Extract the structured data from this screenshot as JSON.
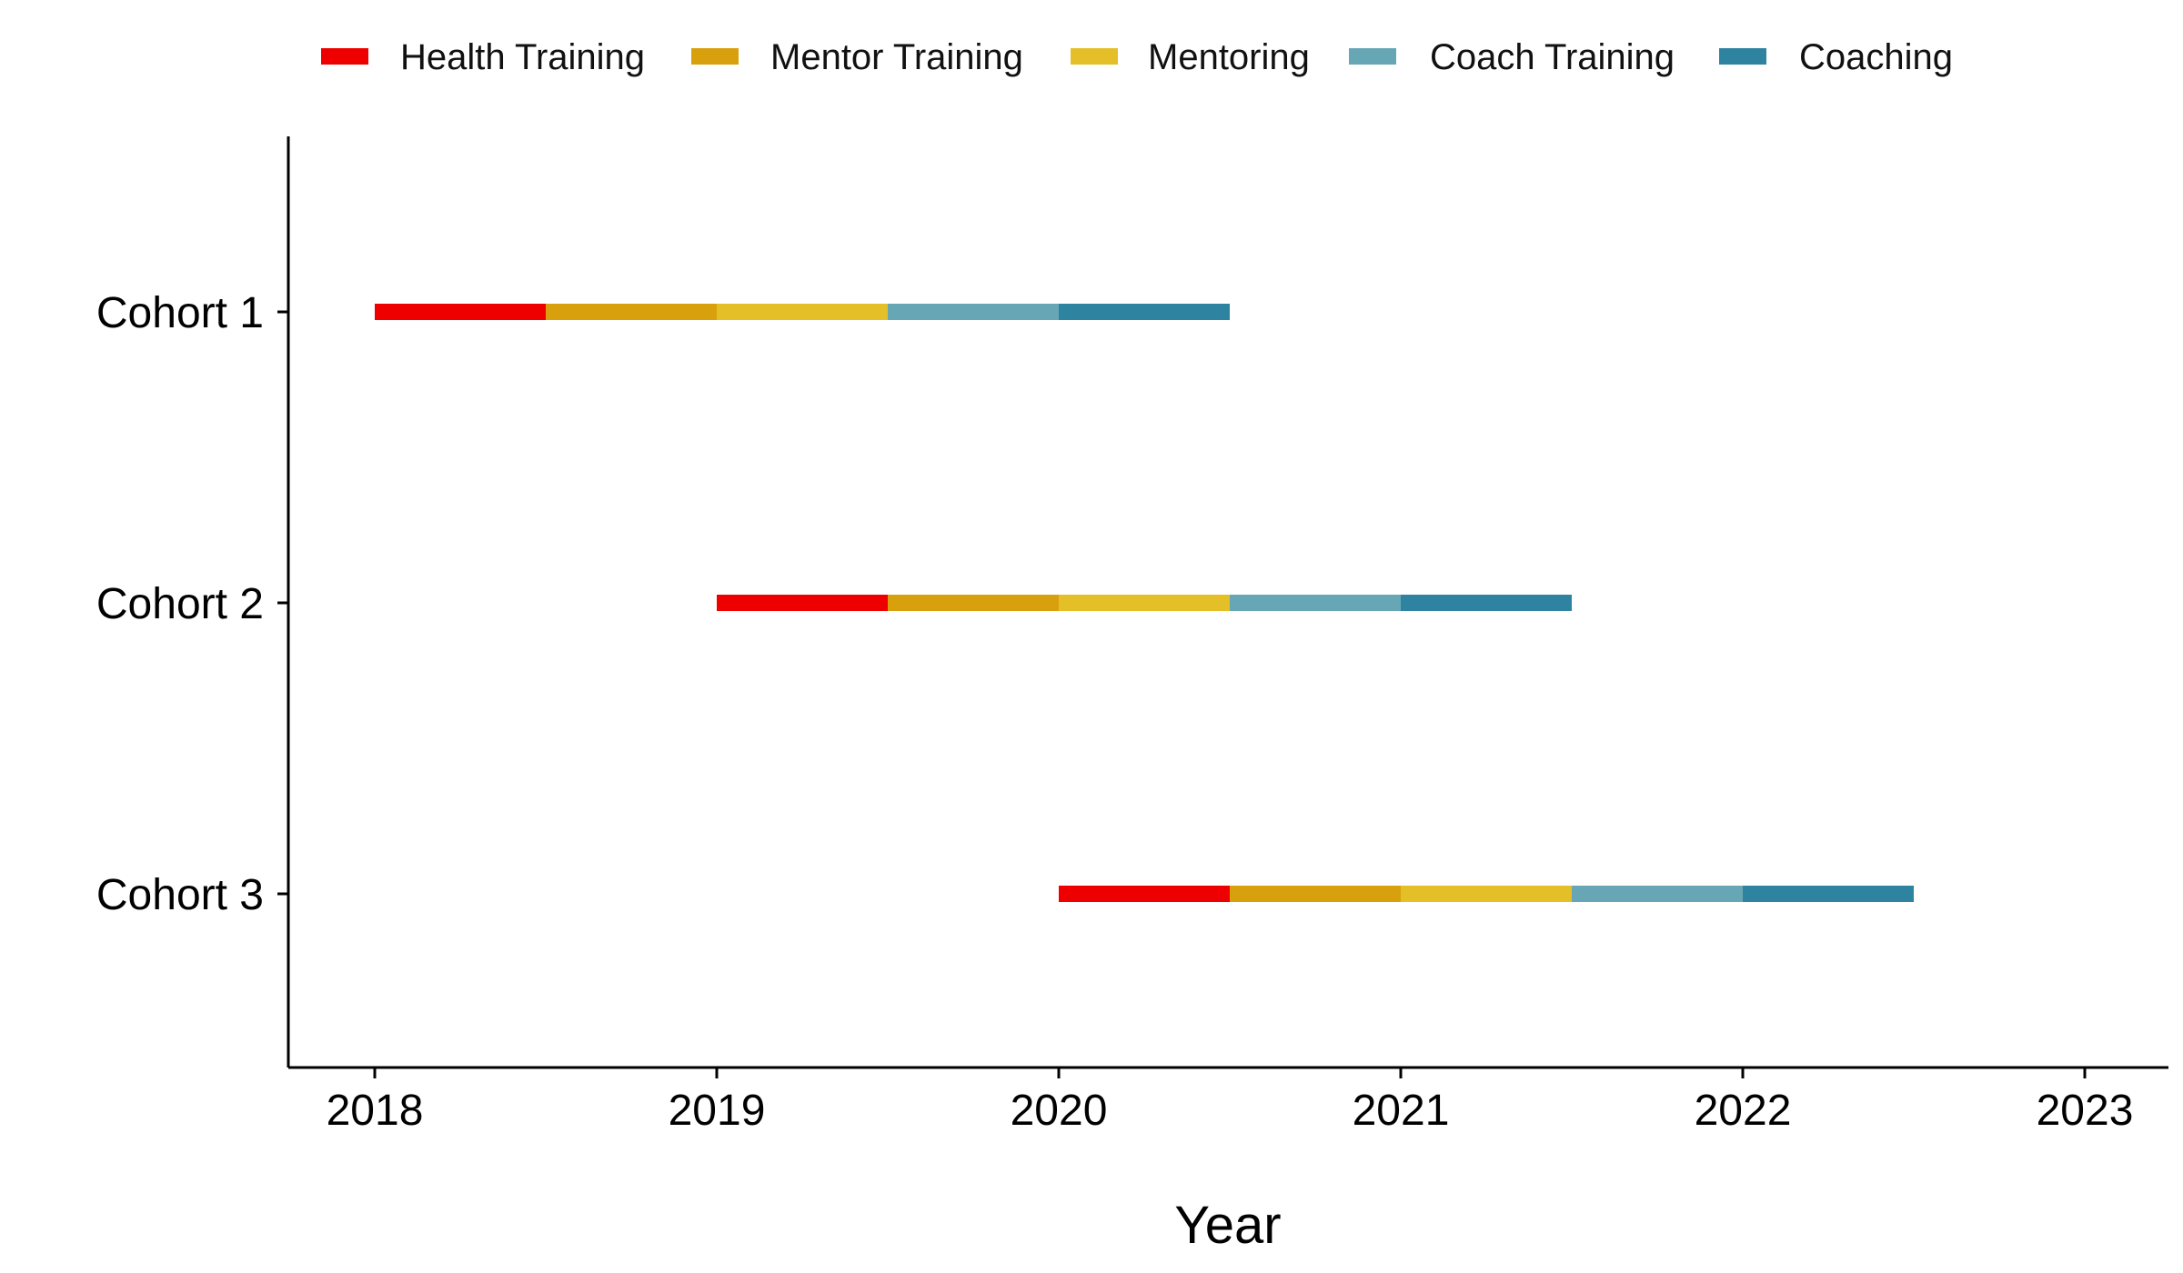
{
  "chart_data": {
    "type": "bar",
    "subtype": "gantt-timeline",
    "title": "",
    "xlabel": "Year",
    "ylabel": "",
    "xlim": [
      2017.75,
      2023.25
    ],
    "x_ticks": [
      2018,
      2019,
      2020,
      2021,
      2022,
      2023
    ],
    "x_tick_labels": [
      "2018",
      "2019",
      "2020",
      "2021",
      "2022",
      "2023"
    ],
    "categories": [
      "Cohort 1",
      "Cohort 2",
      "Cohort 3"
    ],
    "legend_position": "top",
    "grid": false,
    "phases": [
      {
        "name": "Health Training",
        "color": "#EE0000"
      },
      {
        "name": "Mentor Training",
        "color": "#D8A00C"
      },
      {
        "name": "Mentoring",
        "color": "#E4BF28"
      },
      {
        "name": "Coach Training",
        "color": "#67A7B5"
      },
      {
        "name": "Coaching",
        "color": "#2E84A0"
      }
    ],
    "series": [
      {
        "name": "Cohort 1",
        "segments": [
          {
            "phase": "Health Training",
            "start": 2018.0,
            "end": 2018.5
          },
          {
            "phase": "Mentor Training",
            "start": 2018.5,
            "end": 2019.0
          },
          {
            "phase": "Mentoring",
            "start": 2019.0,
            "end": 2019.5
          },
          {
            "phase": "Coach Training",
            "start": 2019.5,
            "end": 2020.0
          },
          {
            "phase": "Coaching",
            "start": 2020.0,
            "end": 2020.5
          }
        ]
      },
      {
        "name": "Cohort 2",
        "segments": [
          {
            "phase": "Health Training",
            "start": 2019.0,
            "end": 2019.5
          },
          {
            "phase": "Mentor Training",
            "start": 2019.5,
            "end": 2020.0
          },
          {
            "phase": "Mentoring",
            "start": 2020.0,
            "end": 2020.5
          },
          {
            "phase": "Coach Training",
            "start": 2020.5,
            "end": 2021.0
          },
          {
            "phase": "Coaching",
            "start": 2021.0,
            "end": 2021.5
          }
        ]
      },
      {
        "name": "Cohort 3",
        "segments": [
          {
            "phase": "Health Training",
            "start": 2020.0,
            "end": 2020.5
          },
          {
            "phase": "Mentor Training",
            "start": 2020.5,
            "end": 2021.0
          },
          {
            "phase": "Mentoring",
            "start": 2021.0,
            "end": 2021.5
          },
          {
            "phase": "Coach Training",
            "start": 2021.5,
            "end": 2022.0
          },
          {
            "phase": "Coaching",
            "start": 2022.0,
            "end": 2022.5
          }
        ]
      }
    ]
  }
}
